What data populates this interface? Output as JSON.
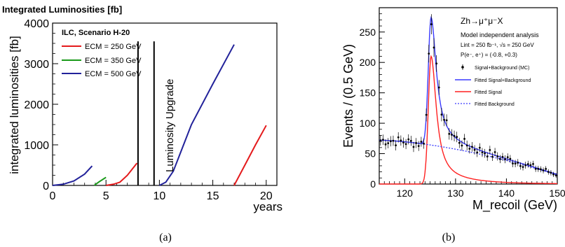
{
  "chart_data": [
    {
      "id": "a",
      "type": "line",
      "title": "Integrated Luminosities  [fb]",
      "legend_title": "ILC, Scenario H-20",
      "legend_placement": "top-left",
      "xlabel": "years",
      "ylabel": "integrated luminosities  [fb]",
      "xlim": [
        0,
        21
      ],
      "ylim": [
        0,
        4000
      ],
      "x_ticks": [
        0,
        5,
        10,
        15,
        20
      ],
      "y_ticks": [
        0,
        1000,
        2000,
        3000,
        4000
      ],
      "x_tick_labels": [
        "0",
        "5",
        "10",
        "15",
        "20"
      ],
      "y_tick_labels": [
        "0",
        "1000",
        "2000",
        "3000",
        "4000"
      ],
      "series": [
        {
          "name": "ECM = 250 GeV",
          "color": "#e41a1c",
          "segments": [
            [
              [
                5.0,
                0
              ],
              [
                5.7,
                30
              ],
              [
                6.3,
                80
              ],
              [
                7.0,
                250
              ],
              [
                7.9,
                550
              ]
            ],
            [
              [
                17.0,
                0
              ],
              [
                18.0,
                500
              ],
              [
                19.0,
                1000
              ],
              [
                20.0,
                1480
              ]
            ]
          ]
        },
        {
          "name": "ECM = 350 GeV",
          "color": "#1a9a1a",
          "segments": [
            [
              [
                3.9,
                0
              ],
              [
                4.3,
                80
              ],
              [
                5.0,
                200
              ]
            ]
          ]
        },
        {
          "name": "ECM = 500 GeV",
          "color": "#22229a",
          "segments": [
            [
              [
                0.0,
                0
              ],
              [
                1.0,
                30
              ],
              [
                2.0,
                110
              ],
              [
                3.0,
                280
              ],
              [
                3.7,
                480
              ]
            ],
            [
              [
                10.0,
                0
              ],
              [
                10.6,
                80
              ],
              [
                11.3,
                350
              ],
              [
                13.0,
                1500
              ],
              [
                15.0,
                2500
              ],
              [
                17.0,
                3470
              ]
            ]
          ]
        }
      ],
      "annotation": {
        "text": "Luminosity Upgrade",
        "x_from": 8,
        "x_to": 9.5
      }
    },
    {
      "id": "b",
      "type": "scatter",
      "title": "Zh→μ⁺μ⁻X",
      "notes": [
        "Model independent analysis",
        "Lint = 250 fb⁻¹, √s = 250 GeV",
        "P(e⁻, e⁺) = (-0.8, +0.3)"
      ],
      "xlabel": "M_recoil (GeV)",
      "ylabel": "Events / (0.5 GeV)",
      "xlim": [
        115,
        150
      ],
      "ylim": [
        0,
        290
      ],
      "x_ticks": [
        120,
        130,
        140,
        150
      ],
      "y_ticks": [
        0,
        50,
        100,
        150,
        200,
        250
      ],
      "x_tick_labels": [
        "120",
        "130",
        "140",
        "150"
      ],
      "y_tick_labels": [
        "0",
        "50",
        "100",
        "150",
        "200",
        "250"
      ],
      "legend_placement": "right",
      "series": [
        {
          "name": "Signal+Background (MC)",
          "color": "#000000"
        },
        {
          "name": "Fitted Signal+Background",
          "color": "#3a3aff"
        },
        {
          "name": "Fitted Signal",
          "color": "#ff2020"
        },
        {
          "name": "Fitted Background",
          "color": "#3a3aff"
        }
      ],
      "fit_model": {
        "peak_mass": 125.2,
        "signal_peak": 210,
        "bkg_at_115": 72,
        "bkg_at_150": 15
      }
    }
  ],
  "captions": {
    "a": "(a)",
    "b": "(b)"
  }
}
